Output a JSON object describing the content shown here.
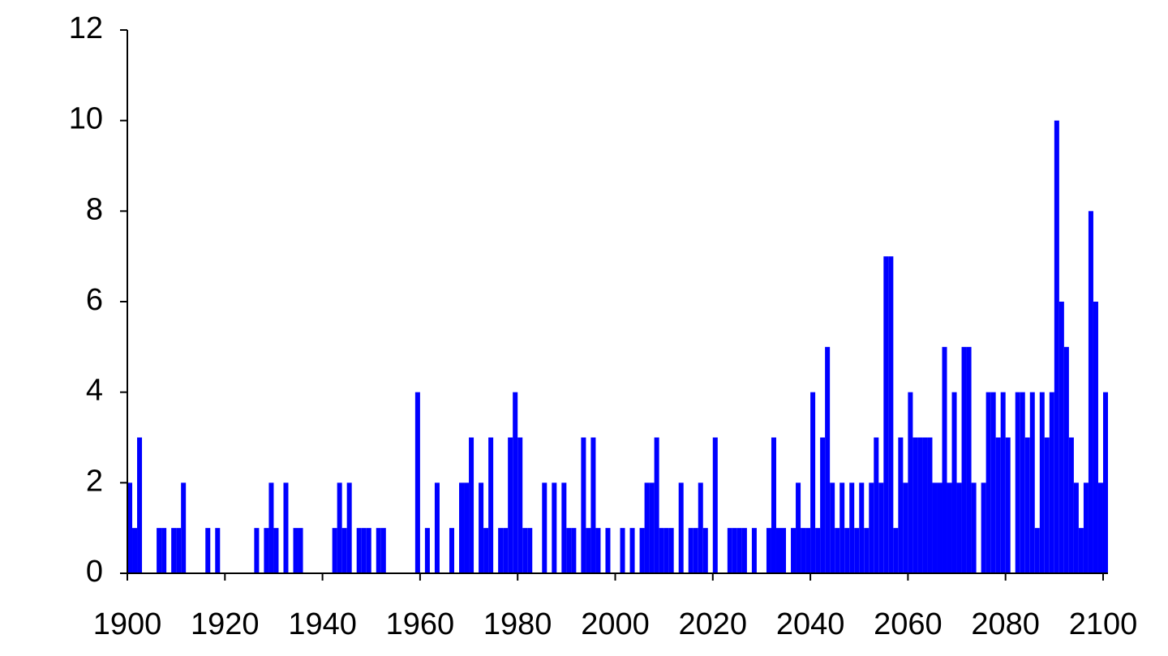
{
  "chart_data": {
    "type": "histogram",
    "bins": [
      1900,
      1901,
      1902,
      1903,
      1904,
      1905,
      1906,
      1907,
      1908,
      1909,
      1910,
      1911,
      1912,
      1913,
      1914,
      1915,
      1916,
      1917,
      1918,
      1919,
      1920,
      1921,
      1922,
      1923,
      1924,
      1925,
      1926,
      1927,
      1928,
      1929,
      1930,
      1931,
      1932,
      1933,
      1934,
      1935,
      1936,
      1937,
      1938,
      1939,
      1940,
      1941,
      1942,
      1943,
      1944,
      1945,
      1946,
      1947,
      1948,
      1949,
      1950,
      1951,
      1952,
      1953,
      1954,
      1955,
      1956,
      1957,
      1958,
      1959,
      1960,
      1961,
      1962,
      1963,
      1964,
      1965,
      1966,
      1967,
      1968,
      1969,
      1970,
      1971,
      1972,
      1973,
      1974,
      1975,
      1976,
      1977,
      1978,
      1979,
      1980,
      1981,
      1982,
      1983,
      1984,
      1985,
      1986,
      1987,
      1988,
      1989,
      1990,
      1991,
      1992,
      1993,
      1994,
      1995,
      1996,
      1997,
      1998,
      1999,
      2000,
      2001,
      2002,
      2003,
      2004,
      2005,
      2006,
      2007,
      2008,
      2009,
      2010,
      2011,
      2012,
      2013,
      2014,
      2015,
      2016,
      2017,
      2018,
      2019,
      2020,
      2021,
      2022,
      2023,
      2024,
      2025,
      2026,
      2027,
      2028,
      2029,
      2030,
      2031,
      2032,
      2033,
      2034,
      2035,
      2036,
      2037,
      2038,
      2039,
      2040,
      2041,
      2042,
      2043,
      2044,
      2045,
      2046,
      2047,
      2048,
      2049,
      2050,
      2051,
      2052,
      2053,
      2054,
      2055,
      2056,
      2057,
      2058,
      2059,
      2060,
      2061,
      2062,
      2063,
      2064,
      2065,
      2066,
      2067,
      2068,
      2069,
      2070,
      2071,
      2072,
      2073,
      2074,
      2075,
      2076,
      2077,
      2078,
      2079,
      2080,
      2081,
      2082,
      2083,
      2084,
      2085,
      2086,
      2087,
      2088,
      2089,
      2090,
      2091,
      2092,
      2093,
      2094,
      2095,
      2096,
      2097,
      2098,
      2099,
      2100,
      2101
    ],
    "values": [
      2,
      1,
      3,
      0,
      0,
      0,
      1,
      1,
      0,
      1,
      1,
      2,
      0,
      0,
      0,
      0,
      1,
      0,
      1,
      0,
      0,
      0,
      0,
      0,
      0,
      0,
      1,
      0,
      1,
      2,
      1,
      0,
      2,
      0,
      1,
      1,
      0,
      0,
      0,
      0,
      0,
      0,
      1,
      2,
      1,
      2,
      0,
      1,
      1,
      1,
      0,
      1,
      1,
      0,
      0,
      0,
      0,
      0,
      0,
      4,
      0,
      1,
      0,
      2,
      0,
      0,
      1,
      0,
      2,
      2,
      3,
      0,
      2,
      1,
      3,
      0,
      1,
      1,
      3,
      4,
      3,
      1,
      1,
      0,
      0,
      2,
      0,
      2,
      0,
      2,
      1,
      1,
      0,
      3,
      1,
      3,
      1,
      0,
      1,
      0,
      0,
      1,
      0,
      1,
      0,
      1,
      2,
      2,
      3,
      1,
      1,
      1,
      0,
      2,
      0,
      1,
      1,
      2,
      1,
      0,
      3,
      0,
      0,
      1,
      1,
      1,
      1,
      0,
      1,
      0,
      0,
      1,
      3,
      1,
      1,
      0,
      1,
      2,
      1,
      1,
      4,
      1,
      3,
      5,
      2,
      1,
      2,
      1,
      2,
      1,
      2,
      1,
      2,
      3,
      2,
      7,
      7,
      1,
      3,
      2,
      4,
      3,
      3,
      3,
      3,
      2,
      2,
      5,
      2,
      4,
      2,
      5,
      5,
      2,
      0,
      2,
      4,
      4,
      3,
      4,
      3,
      0,
      4,
      4,
      3,
      4,
      1,
      4,
      3,
      4,
      10,
      6,
      5,
      3,
      2,
      1,
      2,
      8,
      6,
      2,
      4
    ],
    "color": "#0000ff",
    "xlim": [
      1900,
      2101
    ],
    "xticks": [
      1900,
      1920,
      1940,
      1960,
      1980,
      2000,
      2020,
      2040,
      2060,
      2080,
      2100
    ],
    "ylim": [
      0,
      12
    ],
    "yticks": [
      0,
      2,
      4,
      6,
      8,
      10,
      12
    ]
  }
}
